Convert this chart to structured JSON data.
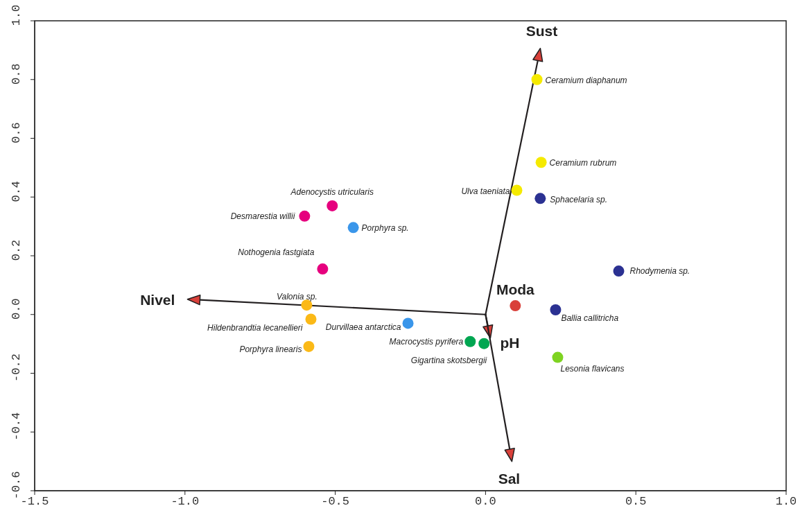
{
  "chart_data": {
    "type": "scatter",
    "marker": "circle",
    "xlim": [
      -1.5,
      1.0
    ],
    "ylim": [
      -0.6,
      1.0
    ],
    "xticks": [
      -1.5,
      {
        "value": -1,
        "label": "-1.0"
      },
      -0.5,
      {
        "value": 0,
        "label": "0.0"
      },
      0.5,
      {
        "value": 1,
        "label": "1.0"
      }
    ],
    "yticks": [
      -0.6,
      -0.4,
      -0.2,
      {
        "value": 0,
        "label": "0.0"
      },
      0.2,
      0.4,
      0.6,
      0.8,
      {
        "value": 1,
        "label": "1.0"
      }
    ],
    "series": [
      {
        "name": "Ceramium diaphanum",
        "color": "#f5ea00",
        "x": [
          0.171
        ],
        "values": [
          0.8
        ]
      },
      {
        "name": "Ceramium rubrum",
        "color": "#f5ea00",
        "x": [
          0.185
        ],
        "values": [
          0.518
        ]
      },
      {
        "name": "Ulva taeniata",
        "color": "#f5ea00",
        "x": [
          0.104
        ],
        "values": [
          0.423
        ]
      },
      {
        "name": "Sphacelaria sp.",
        "color": "#2b3192",
        "x": [
          0.182
        ],
        "values": [
          0.395
        ]
      },
      {
        "name": "Adenocystis utricularis",
        "color": "#e6007e",
        "x": [
          -0.51
        ],
        "values": [
          0.37
        ]
      },
      {
        "name": "Desmarestia willii",
        "color": "#e6007e",
        "x": [
          -0.602
        ],
        "values": [
          0.335
        ]
      },
      {
        "name": "Porphyra sp.",
        "color": "#3a96ea",
        "x": [
          -0.44
        ],
        "values": [
          0.296
        ]
      },
      {
        "name": "Nothogenia fastgiata",
        "color": "#e6007e",
        "x": [
          -0.542
        ],
        "values": [
          0.155
        ]
      },
      {
        "name": "Rhodymenia sp.",
        "color": "#2b3192",
        "x": [
          0.443
        ],
        "values": [
          0.148
        ]
      },
      {
        "name": "Ballia callitricha",
        "color": "#2b3192",
        "x": [
          0.233
        ],
        "values": [
          0.016
        ]
      },
      {
        "name": "Valonia sp.",
        "color": "#fbb917",
        "x": [
          -0.595
        ],
        "values": [
          0.032
        ]
      },
      {
        "name": "Hildenbrandtia lecanellieri",
        "color": "#fbb917",
        "x": [
          -0.581
        ],
        "values": [
          -0.016
        ]
      },
      {
        "name": "Durvillaea antarctica",
        "color": "#3a96ea",
        "x": [
          -0.258
        ],
        "values": [
          -0.03
        ]
      },
      {
        "name": "Porphyra linearis",
        "color": "#fbb917",
        "x": [
          -0.588
        ],
        "values": [
          -0.109
        ]
      },
      {
        "name": "Macrocystis pyrifera",
        "color": "#00a651",
        "x": [
          -0.051
        ],
        "values": [
          -0.092
        ]
      },
      {
        "name": "Gigartina skotsbergii",
        "color": "#00a651",
        "x": [
          -0.005
        ],
        "values": [
          -0.099
        ]
      },
      {
        "name": "Lesonia flavicans",
        "color": "#7ed321",
        "x": [
          0.24
        ],
        "values": [
          -0.146
        ]
      },
      {
        "name": "Moda",
        "color": "#d9403a",
        "x": [
          0.099
        ],
        "values": [
          0.03
        ]
      }
    ],
    "annotations": [
      "Sust",
      "Nivel",
      "pH",
      "Sal"
    ]
  }
}
